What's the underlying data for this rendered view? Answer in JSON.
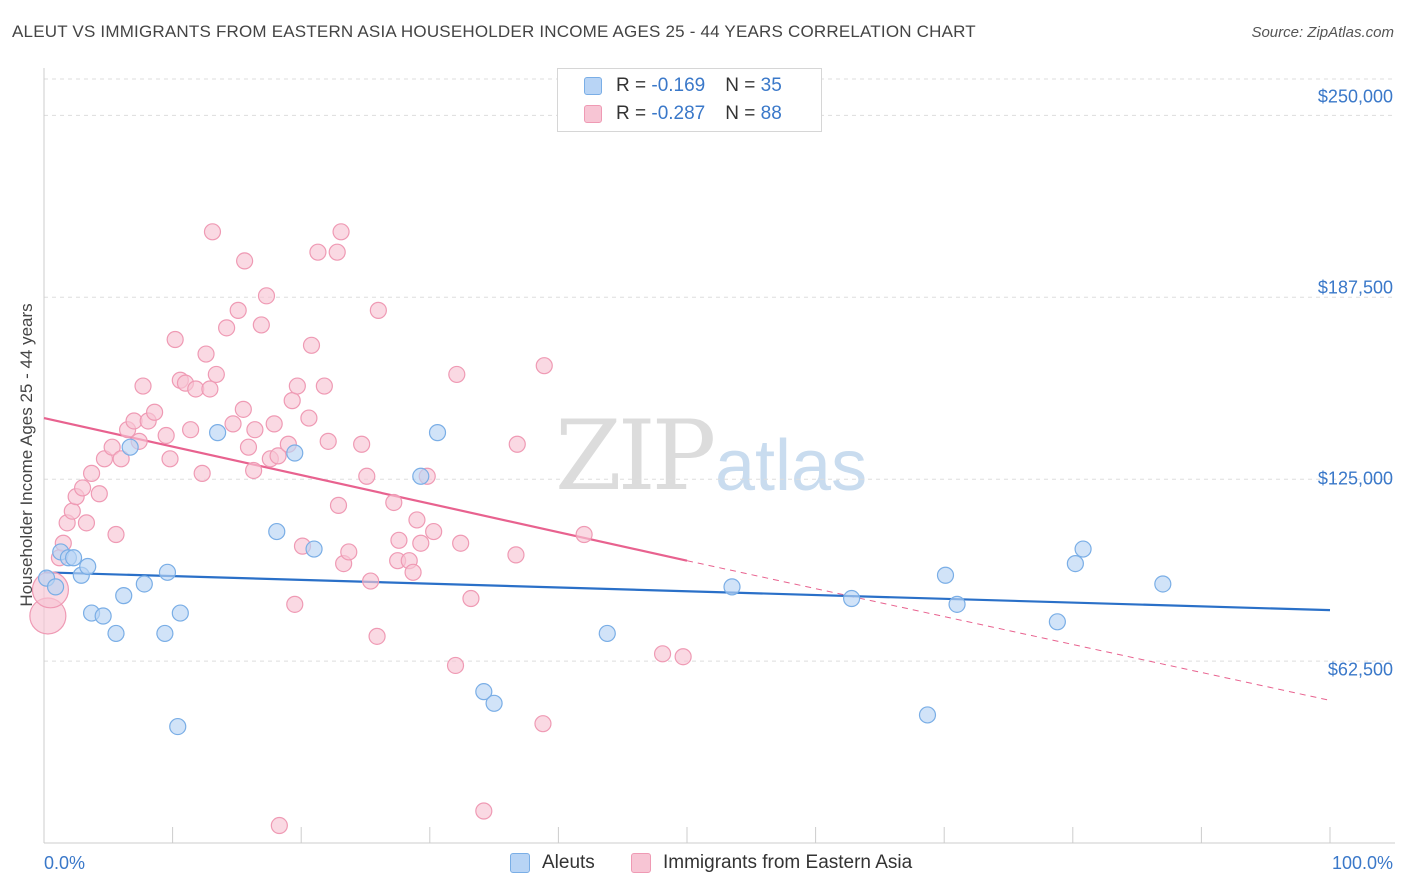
{
  "title": "ALEUT VS IMMIGRANTS FROM EASTERN ASIA HOUSEHOLDER INCOME AGES 25 - 44 YEARS CORRELATION CHART",
  "source": "Source: ZipAtlas.com",
  "watermark": {
    "zip": "ZIP",
    "atlas": "atlas"
  },
  "legend": {
    "rows": [
      {
        "r_label": "R = ",
        "r_value": "-0.169",
        "n_label": "N = ",
        "n_value": "35"
      },
      {
        "r_label": "R = ",
        "r_value": "-0.287",
        "n_label": "N = ",
        "n_value": "88"
      }
    ],
    "bottom": [
      "Aleuts",
      "Immigrants from Eastern Asia"
    ]
  },
  "colors": {
    "blue_fill": "#b8d4f5",
    "blue_stroke": "#7aaee6",
    "blue_line": "#2a70c8",
    "pink_fill": "#f7c5d4",
    "pink_stroke": "#ef9ab4",
    "pink_line": "#e8628f"
  },
  "chart_data": {
    "type": "scatter",
    "title": "ALEUT VS IMMIGRANTS FROM EASTERN ASIA HOUSEHOLDER INCOME AGES 25 - 44 YEARS CORRELATION CHART",
    "xlabel": "",
    "ylabel": "Householder Income Ages 25 - 44 years",
    "xlim": [
      0,
      100
    ],
    "ylim": [
      0,
      262500
    ],
    "x_tick_labels": [
      "0.0%",
      "100.0%"
    ],
    "y_ticks": [
      62500,
      125000,
      187500,
      250000
    ],
    "y_tick_labels": [
      "$62,500",
      "$125,000",
      "$187,500",
      "$250,000"
    ],
    "series": [
      {
        "name": "Aleuts",
        "r": -0.169,
        "n": 35,
        "trend": {
          "x0": 0,
          "y0": 93000,
          "x1": 100,
          "y1": 80000
        },
        "points": [
          [
            0.2,
            91000
          ],
          [
            0.9,
            88000
          ],
          [
            1.3,
            100000
          ],
          [
            1.9,
            98000
          ],
          [
            2.3,
            98000
          ],
          [
            2.9,
            92000
          ],
          [
            3.4,
            95000
          ],
          [
            3.7,
            79000
          ],
          [
            4.6,
            78000
          ],
          [
            5.6,
            72000
          ],
          [
            6.2,
            85000
          ],
          [
            6.7,
            136000
          ],
          [
            7.8,
            89000
          ],
          [
            9.4,
            72000
          ],
          [
            9.6,
            93000
          ],
          [
            10.4,
            40000
          ],
          [
            10.6,
            79000
          ],
          [
            13.5,
            141000
          ],
          [
            18.1,
            107000
          ],
          [
            19.5,
            134000
          ],
          [
            21.0,
            101000
          ],
          [
            29.3,
            126000
          ],
          [
            30.6,
            141000
          ],
          [
            34.2,
            52000
          ],
          [
            35.0,
            48000
          ],
          [
            43.8,
            72000
          ],
          [
            53.5,
            88000
          ],
          [
            62.8,
            84000
          ],
          [
            68.7,
            44000
          ],
          [
            70.1,
            92000
          ],
          [
            71.0,
            82000
          ],
          [
            78.8,
            76000
          ],
          [
            80.2,
            96000
          ],
          [
            80.8,
            101000
          ],
          [
            87.0,
            89000
          ]
        ]
      },
      {
        "name": "Immigrants from Eastern Asia",
        "r": -0.287,
        "n": 88,
        "trend": {
          "x0": 0,
          "y0": 146000,
          "x1": 50,
          "y1": 97000,
          "dash_x1": 100,
          "dash_y1": 49000
        },
        "points": [
          [
            0.3,
            78000
          ],
          [
            0.5,
            87000
          ],
          [
            1.2,
            98000
          ],
          [
            1.5,
            103000
          ],
          [
            1.8,
            110000
          ],
          [
            2.2,
            114000
          ],
          [
            2.5,
            119000
          ],
          [
            3.0,
            122000
          ],
          [
            3.3,
            110000
          ],
          [
            3.7,
            127000
          ],
          [
            4.3,
            120000
          ],
          [
            4.7,
            132000
          ],
          [
            5.3,
            136000
          ],
          [
            5.6,
            106000
          ],
          [
            6.0,
            132000
          ],
          [
            6.5,
            142000
          ],
          [
            7.0,
            145000
          ],
          [
            7.4,
            138000
          ],
          [
            7.7,
            157000
          ],
          [
            8.1,
            145000
          ],
          [
            8.6,
            148000
          ],
          [
            9.5,
            140000
          ],
          [
            9.8,
            132000
          ],
          [
            10.2,
            173000
          ],
          [
            10.6,
            159000
          ],
          [
            11.0,
            158000
          ],
          [
            11.4,
            142000
          ],
          [
            11.8,
            156000
          ],
          [
            12.3,
            127000
          ],
          [
            12.6,
            168000
          ],
          [
            12.9,
            156000
          ],
          [
            13.1,
            210000
          ],
          [
            13.4,
            161000
          ],
          [
            14.2,
            177000
          ],
          [
            14.7,
            144000
          ],
          [
            15.1,
            183000
          ],
          [
            15.5,
            149000
          ],
          [
            15.6,
            200000
          ],
          [
            15.9,
            136000
          ],
          [
            16.3,
            128000
          ],
          [
            16.4,
            142000
          ],
          [
            16.9,
            178000
          ],
          [
            17.3,
            188000
          ],
          [
            17.6,
            132000
          ],
          [
            17.9,
            144000
          ],
          [
            18.2,
            133000
          ],
          [
            18.3,
            6000
          ],
          [
            19.0,
            137000
          ],
          [
            19.3,
            152000
          ],
          [
            19.5,
            82000
          ],
          [
            19.7,
            157000
          ],
          [
            20.1,
            102000
          ],
          [
            20.6,
            146000
          ],
          [
            20.8,
            171000
          ],
          [
            21.3,
            203000
          ],
          [
            21.8,
            157000
          ],
          [
            22.1,
            138000
          ],
          [
            22.8,
            203000
          ],
          [
            22.9,
            116000
          ],
          [
            23.1,
            210000
          ],
          [
            23.3,
            96000
          ],
          [
            23.7,
            100000
          ],
          [
            24.7,
            137000
          ],
          [
            25.1,
            126000
          ],
          [
            25.4,
            90000
          ],
          [
            25.9,
            71000
          ],
          [
            26.0,
            183000
          ],
          [
            27.2,
            117000
          ],
          [
            27.5,
            97000
          ],
          [
            27.6,
            104000
          ],
          [
            28.4,
            97000
          ],
          [
            28.7,
            93000
          ],
          [
            29.0,
            111000
          ],
          [
            29.3,
            103000
          ],
          [
            29.8,
            126000
          ],
          [
            30.3,
            107000
          ],
          [
            32.0,
            61000
          ],
          [
            32.1,
            161000
          ],
          [
            32.4,
            103000
          ],
          [
            33.2,
            84000
          ],
          [
            34.2,
            11000
          ],
          [
            36.7,
            99000
          ],
          [
            36.8,
            137000
          ],
          [
            38.8,
            41000
          ],
          [
            38.9,
            164000
          ],
          [
            42.0,
            106000
          ],
          [
            48.1,
            65000
          ],
          [
            49.7,
            64000
          ]
        ]
      }
    ]
  }
}
